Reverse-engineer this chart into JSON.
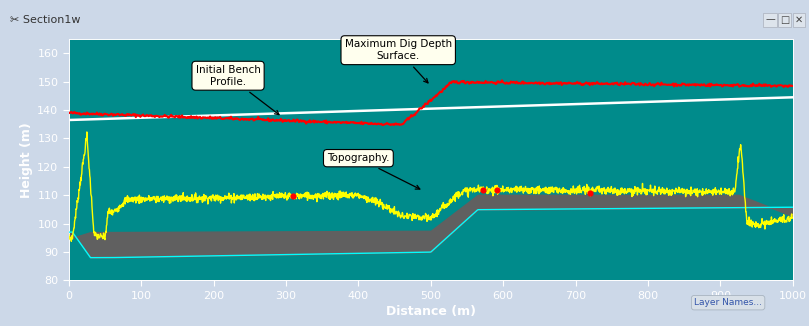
{
  "title": "Section1w",
  "xlabel": "Distance (m)",
  "ylabel": "Height (m)",
  "xlim": [
    0,
    1000
  ],
  "ylim": [
    80,
    165
  ],
  "plot_bg_color": "#008B8B",
  "frame_color": "#ccd8e8",
  "titlebar_color": "#d4dde8",
  "yticks": [
    80,
    90,
    100,
    110,
    120,
    130,
    140,
    150,
    160
  ],
  "xticks": [
    0,
    100,
    200,
    300,
    400,
    500,
    600,
    700,
    800,
    900,
    1000
  ],
  "tick_color": "white",
  "label_color": "white",
  "white_line_start": 136.5,
  "white_line_end": 144.5
}
